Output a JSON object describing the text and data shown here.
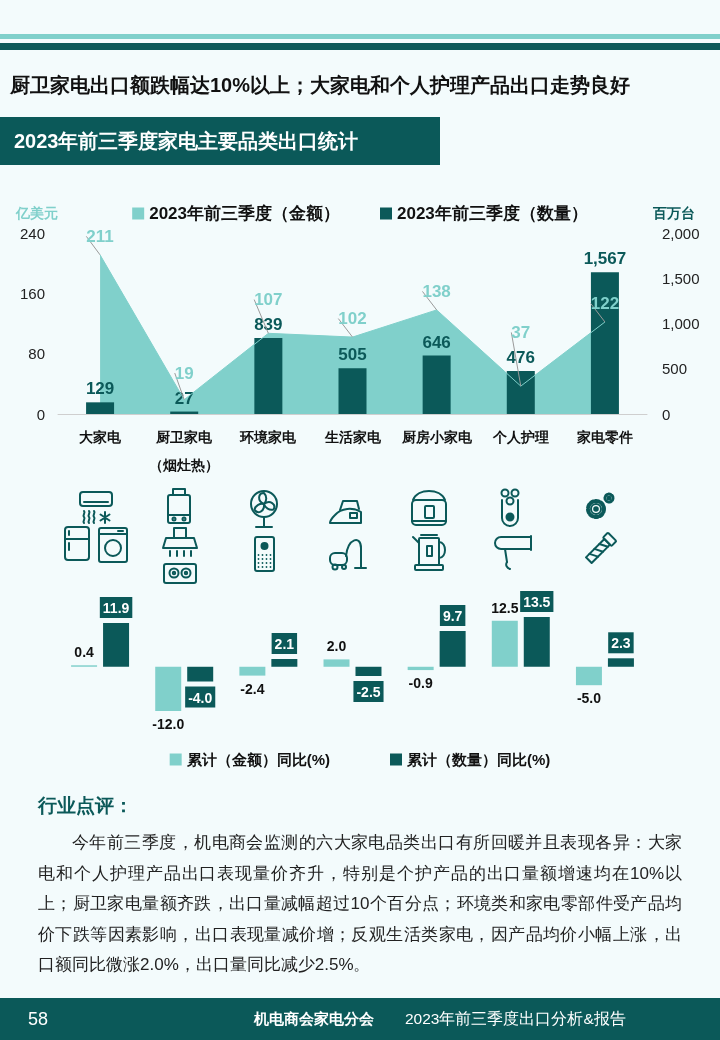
{
  "chart_data": [
    {
      "type": "bar",
      "title": "厨卫家电出口额跌幅达10%以上；大家电和个人护理产品出口走势良好",
      "subtitle": "2023年前三季度家电主要品类出口统计",
      "ylabel": "亿美元",
      "y2label": "百万台",
      "categories": [
        "大家电",
        "厨卫家电（烟灶热）",
        "环境家电",
        "生活家电",
        "厨房小家电",
        "个人护理",
        "家电零件"
      ],
      "series": [
        {
          "name": "2023年前三季度（金额）",
          "type": "area",
          "color": "#80d0cb",
          "values": [
            211,
            19,
            107,
            102,
            138,
            37,
            122
          ],
          "value_labels": [
            "211",
            "19",
            "107",
            "102",
            "138",
            "37",
            "122"
          ]
        },
        {
          "name": "2023年前三季度（数量）",
          "type": "bar",
          "axis": "y2",
          "color": "#0b5959",
          "values": [
            129,
            27,
            839,
            505,
            646,
            476,
            1567
          ],
          "value_labels": [
            "129",
            "27",
            "839",
            "505",
            "646",
            "476",
            "1,567"
          ]
        }
      ],
      "ylim": [
        0,
        240
      ],
      "yticks": [
        0,
        80,
        160,
        240
      ],
      "y2lim": [
        0,
        2000
      ],
      "y2ticks": [
        0,
        500,
        {
          "value": 1000,
          "label": "1,000"
        },
        {
          "value": 1500,
          "label": "1,500"
        },
        {
          "value": 2000,
          "label": "2,000"
        }
      ],
      "legend": "top"
    },
    {
      "type": "bar",
      "categories": [
        null,
        null,
        null,
        null,
        null,
        null,
        null
      ],
      "series": [
        {
          "name": "累计（金额）同比(%)",
          "color": "#80d0cb",
          "values": [
            0.4,
            -12.0,
            -2.4,
            2.0,
            -0.9,
            12.5,
            -5.0
          ],
          "value_labels": [
            "0.4",
            "-12.0",
            "-2.4",
            "2.0",
            "-0.9",
            "12.5",
            "-5.0"
          ]
        },
        {
          "name": "累计（数量）同比(%)",
          "color": "#0b5959",
          "values": [
            11.9,
            -4.0,
            2.1,
            -2.5,
            9.7,
            13.5,
            2.3
          ],
          "value_labels": [
            "11.9",
            "-4.0",
            "2.1",
            "-2.5",
            "9.7",
            "13.5",
            "2.3"
          ]
        }
      ],
      "legend": "bottom",
      "tick_labels": false
    },
    {
      "type": "other",
      "title": "行业点评：",
      "annotations": [
        "今年前三季度，机电商会监测的六大家电品类出口有所回暖并且表现各异：大家电和个人护理产品出口表现量价齐升，特别是个护产品的出口量额增速均在10%以上；厨卫家电量额齐跌，出口量减幅超过10个百分点；环境类和家电零部件受产品均价下跌等因素影响，出口表现量减价增；反观生活类家电，因产品均价小幅上涨，出口额同比微涨2.0%，出口量同比减少2.5%。",
        "58",
        "机电商会家电分会",
        "2023年前三季度出口分析&报告"
      ]
    }
  ]
}
